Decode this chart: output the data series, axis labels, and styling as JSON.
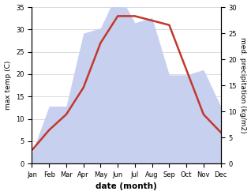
{
  "months": [
    "Jan",
    "Feb",
    "Mar",
    "Apr",
    "May",
    "Jun",
    "Jul",
    "Aug",
    "Sep",
    "Oct",
    "Nov",
    "Dec"
  ],
  "temp": [
    3,
    7.5,
    11,
    17,
    27,
    33,
    33,
    32,
    31,
    21,
    11,
    7
  ],
  "precip": [
    2,
    11,
    11,
    25,
    26,
    33,
    27,
    28,
    17,
    17,
    18,
    11
  ],
  "temp_color": "#c0392b",
  "precip_fill_color": "#c8d0f0",
  "left_ylim": [
    0,
    35
  ],
  "right_ylim": [
    0,
    30
  ],
  "left_yticks": [
    0,
    5,
    10,
    15,
    20,
    25,
    30,
    35
  ],
  "right_yticks": [
    0,
    5,
    10,
    15,
    20,
    25,
    30
  ],
  "xlabel": "date (month)",
  "ylabel_left": "max temp (C)",
  "ylabel_right": "med. precipitation (kg/m2)",
  "bg_color": "#ffffff",
  "grid_color": "#cccccc",
  "line_width": 1.8,
  "label_fontsize": 6.5,
  "tick_fontsize": 6.0,
  "xlabel_fontsize": 7.5
}
